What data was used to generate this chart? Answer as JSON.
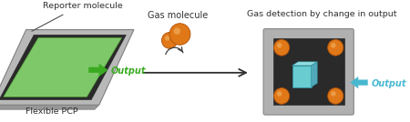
{
  "bg_color": "#ffffff",
  "gray_outer": "#b0b0b0",
  "gray_mid": "#909090",
  "gray_dark": "#353535",
  "green_fill": "#7ec86a",
  "green_arrow": "#3aaa20",
  "orange_ball": "#e07818",
  "orange_dark": "#b05008",
  "orange_highlight": "#f0b060",
  "cyan_box": "#68ccd0",
  "cyan_box_dark": "#3090a0",
  "cyan_arrow": "#48b8d0",
  "text_color": "#303030",
  "label_reporter": "Reporter molecule",
  "label_pcp": "Flexible PCP",
  "label_gas": "Gas molecule",
  "label_output1": "Output",
  "label_output2": "Output",
  "label_detection": "Gas detection by change in output",
  "figsize": [
    4.5,
    1.34
  ],
  "dpi": 100
}
